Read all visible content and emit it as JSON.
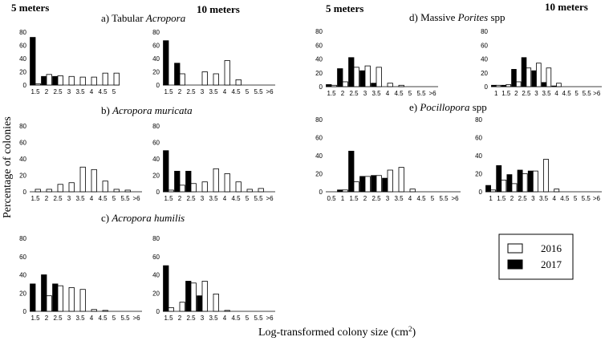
{
  "figure": {
    "headers": [
      "5 meters",
      "10 meters",
      "5 meters",
      "10 meters"
    ],
    "xlabel_main": "Log-transformed colony size (cm",
    "xlabel_sup": "2",
    "xlabel_close": ")",
    "ylabel": "Percentage of colonies"
  },
  "subtitles": {
    "a": {
      "prefix": "a) Tabular ",
      "italic": "Acropora",
      "suffix": ""
    },
    "b": {
      "prefix": "b) ",
      "italic": "Acropora muricata",
      "suffix": ""
    },
    "c": {
      "prefix": "c) ",
      "italic": "Acropora humilis",
      "suffix": ""
    },
    "d": {
      "prefix": "d) Massive ",
      "italic": "Porites",
      "suffix": " spp"
    },
    "e": {
      "prefix": "e) ",
      "italic": "Pocillopora",
      "suffix": " spp"
    }
  },
  "legend": {
    "items": [
      {
        "label": "2016",
        "color": "#ffffff"
      },
      {
        "label": "2017",
        "color": "#000000"
      }
    ]
  },
  "chart_data": [
    {
      "id": "a5",
      "type": "bar",
      "ylim": [
        0,
        80
      ],
      "yticks": [
        0,
        20,
        40,
        60,
        80
      ],
      "categories": [
        "1.5",
        "2",
        "2.5",
        "3",
        "3.5",
        "4",
        "4.5",
        "5"
      ],
      "xticks": [
        "1.5",
        "2",
        "2.5",
        "3",
        "3.5",
        "4",
        "4.5",
        "5"
      ],
      "series": [
        {
          "name": "2016",
          "values": [
            2,
            16,
            14,
            13,
            12,
            12,
            18,
            18
          ]
        },
        {
          "name": "2017",
          "values": [
            72,
            13,
            13,
            0,
            0,
            0,
            0,
            0
          ]
        }
      ]
    },
    {
      "id": "a10",
      "type": "bar",
      "ylim": [
        0,
        80
      ],
      "yticks": [
        0,
        20,
        40,
        60,
        80
      ],
      "categories": [
        "1.5",
        "2",
        "2.5",
        "3",
        "3.5",
        "4",
        "4.5",
        "5",
        "5.5",
        ">6"
      ],
      "xticks": [
        "1.5",
        "2",
        "2.5",
        "3",
        "3.5",
        "4",
        "4.5",
        "5",
        "5.5",
        ">6"
      ],
      "series": [
        {
          "name": "2016",
          "values": [
            0,
            17,
            0,
            20,
            17,
            37,
            8,
            0,
            0,
            0
          ]
        },
        {
          "name": "2017",
          "values": [
            67,
            33,
            0,
            0,
            0,
            0,
            0,
            0,
            0,
            0
          ]
        }
      ]
    },
    {
      "id": "b5",
      "type": "bar",
      "ylim": [
        0,
        80
      ],
      "yticks": [
        0,
        20,
        40,
        60,
        80
      ],
      "categories": [
        "1.5",
        "2",
        "2.5",
        "3",
        "3.5",
        "4",
        "4.5",
        "5",
        "5.5",
        ">6"
      ],
      "xticks": [
        "1.5",
        "2",
        "2.5",
        "3",
        "3.5",
        "4",
        "4.5",
        "5",
        "5.5",
        ">6"
      ],
      "series": [
        {
          "name": "2016",
          "values": [
            3,
            3,
            9,
            11,
            30,
            27,
            13,
            3,
            2,
            0
          ]
        },
        {
          "name": "2017",
          "values": [
            0,
            0,
            0,
            0,
            0,
            0,
            0,
            0,
            0,
            0
          ]
        }
      ]
    },
    {
      "id": "b10",
      "type": "bar",
      "ylim": [
        0,
        80
      ],
      "yticks": [
        0,
        20,
        40,
        60,
        80
      ],
      "categories": [
        "1.5",
        "2",
        "2.5",
        "3",
        "3.5",
        "4",
        "4.5",
        "5",
        "5.5",
        ">6"
      ],
      "xticks": [
        "1.5",
        "2",
        "2.5",
        "3",
        "3.5",
        "4",
        "4.5",
        "5",
        "5.5",
        ">6"
      ],
      "series": [
        {
          "name": "2016",
          "values": [
            2,
            8,
            10,
            12,
            28,
            22,
            12,
            3,
            4,
            0
          ]
        },
        {
          "name": "2017",
          "values": [
            50,
            25,
            25,
            0,
            0,
            0,
            0,
            0,
            0,
            0
          ]
        }
      ]
    },
    {
      "id": "c5",
      "type": "bar",
      "ylim": [
        0,
        80
      ],
      "yticks": [
        0,
        20,
        40,
        60,
        80
      ],
      "categories": [
        "1.5",
        "2",
        "2.5",
        "3",
        "3.5",
        "4",
        "4.5",
        "5",
        "5.5",
        ">6"
      ],
      "xticks": [
        "1.5",
        "2",
        "2.5",
        "3",
        "3.5",
        "4",
        "4.5",
        "5",
        "5.5",
        ">6"
      ],
      "series": [
        {
          "name": "2016",
          "values": [
            0,
            17,
            28,
            26,
            24,
            2,
            1,
            0,
            0,
            0
          ]
        },
        {
          "name": "2017",
          "values": [
            30,
            40,
            30,
            0,
            0,
            0,
            0,
            0,
            0,
            0
          ]
        }
      ]
    },
    {
      "id": "c10",
      "type": "bar",
      "ylim": [
        0,
        80
      ],
      "yticks": [
        0,
        20,
        40,
        60,
        80
      ],
      "categories": [
        "1.5",
        "2",
        "2.5",
        "3",
        "3.5",
        "4",
        "4.5",
        "5",
        "5.5",
        ">6"
      ],
      "xticks": [
        "1.5",
        "2",
        "2.5",
        "3",
        "3.5",
        "4",
        "4.5",
        "5",
        "5.5",
        ">6"
      ],
      "series": [
        {
          "name": "2016",
          "values": [
            4,
            10,
            31,
            33,
            19,
            1,
            0,
            0,
            0,
            0
          ]
        },
        {
          "name": "2017",
          "values": [
            50,
            0,
            33,
            17,
            0,
            0,
            0,
            0,
            0,
            0
          ]
        }
      ]
    },
    {
      "id": "d5",
      "type": "bar",
      "ylim": [
        0,
        80
      ],
      "yticks": [
        0,
        20,
        40,
        60,
        80
      ],
      "categories": [
        "1.5",
        "2",
        "2.5",
        "3",
        "3.5",
        "4",
        "4.5",
        "5",
        "5.5",
        ">6"
      ],
      "xticks": [
        "1.5",
        "2",
        "2.5",
        "3",
        "3.5",
        "4",
        "4.5",
        "5",
        "5.5",
        ">6"
      ],
      "series": [
        {
          "name": "2016",
          "values": [
            2,
            7,
            28,
            30,
            28,
            5,
            2,
            0,
            0,
            0
          ]
        },
        {
          "name": "2017",
          "values": [
            3,
            26,
            42,
            23,
            5,
            0,
            0,
            0,
            0,
            0
          ]
        }
      ]
    },
    {
      "id": "d10",
      "type": "bar",
      "ylim": [
        0,
        80
      ],
      "yticks": [
        0,
        20,
        40,
        60,
        80
      ],
      "categories": [
        "1",
        "1.5",
        "2",
        "2.5",
        "3",
        "3.5",
        "4",
        "4.5",
        "5",
        "5.5",
        ">6"
      ],
      "xticks": [
        "1",
        "1.5",
        "2",
        "2.5",
        "3",
        "3.5",
        "4",
        "4.5",
        "5",
        "5.5",
        ">6"
      ],
      "series": [
        {
          "name": "2016",
          "values": [
            2,
            3,
            7,
            27,
            34,
            27,
            5,
            0,
            0,
            0,
            0
          ]
        },
        {
          "name": "2017",
          "values": [
            2,
            2,
            25,
            42,
            23,
            6,
            1,
            0,
            0,
            0,
            0
          ]
        }
      ]
    },
    {
      "id": "e5",
      "type": "bar",
      "ylim": [
        0,
        80
      ],
      "yticks": [
        0,
        20,
        40,
        60,
        80
      ],
      "categories": [
        "0.5",
        "1",
        "1.5",
        "2",
        "2.5",
        "3",
        "3.5",
        "4",
        "4.5",
        "5",
        "5.5",
        ">6"
      ],
      "xticks": [
        "0.5",
        "1",
        "1.5",
        "2",
        "2.5",
        "3",
        "3.5",
        "4",
        "4.5",
        "5",
        "5.5",
        ">6"
      ],
      "series": [
        {
          "name": "2016",
          "values": [
            0,
            2,
            11,
            17,
            18,
            24,
            27,
            3,
            0,
            0,
            0,
            0
          ]
        },
        {
          "name": "2017",
          "values": [
            0,
            2,
            45,
            17,
            18,
            15,
            0,
            0,
            0,
            0,
            0,
            0
          ]
        }
      ]
    },
    {
      "id": "e10",
      "type": "bar",
      "ylim": [
        0,
        80
      ],
      "yticks": [
        0,
        20,
        40,
        60,
        80
      ],
      "categories": [
        "1",
        "1.5",
        "2",
        "2.5",
        "3",
        "3.5",
        "4",
        "4.5",
        "5",
        "5.5",
        ">6"
      ],
      "xticks": [
        "1",
        "1.5",
        "2",
        "2.5",
        "3",
        "3.5",
        "4",
        "4.5",
        "5",
        "5.5",
        ">6"
      ],
      "series": [
        {
          "name": "2016",
          "values": [
            2,
            13,
            9,
            20,
            23,
            36,
            3,
            0,
            0,
            0,
            0
          ]
        },
        {
          "name": "2017",
          "values": [
            7,
            29,
            19,
            24,
            23,
            0,
            0,
            0,
            0,
            0,
            0
          ]
        }
      ]
    }
  ]
}
